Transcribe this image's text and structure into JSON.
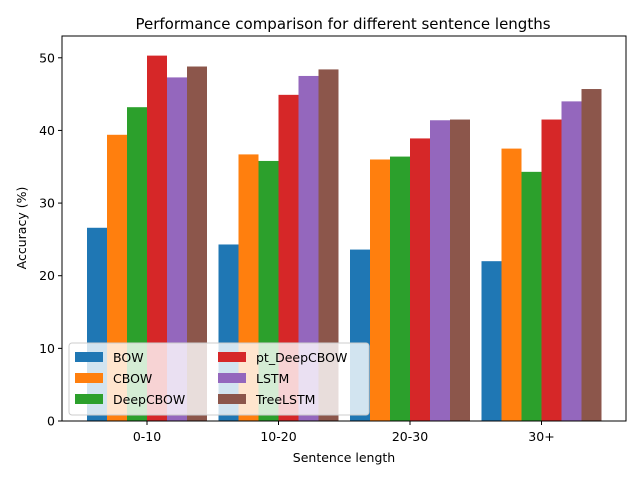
{
  "chart_data": {
    "type": "bar",
    "title": "Performance comparison for different sentence lengths",
    "xlabel": "Sentence length",
    "ylabel": "Accuracy (%)",
    "categories": [
      "0-10",
      "10-20",
      "20-30",
      "30+"
    ],
    "ylim": [
      0,
      53
    ],
    "yticks": [
      0,
      10,
      20,
      30,
      40,
      50
    ],
    "grid": false,
    "legend_position": "lower-left",
    "series": [
      {
        "name": "BOW",
        "color": "#1f77b4",
        "values": [
          26.6,
          24.3,
          23.6,
          22.0
        ]
      },
      {
        "name": "CBOW",
        "color": "#ff7f0e",
        "values": [
          39.4,
          36.7,
          36.0,
          37.5
        ]
      },
      {
        "name": "DeepCBOW",
        "color": "#2ca02c",
        "values": [
          43.2,
          35.8,
          36.4,
          34.3
        ]
      },
      {
        "name": "pt_DeepCBOW",
        "color": "#d62728",
        "values": [
          50.3,
          44.9,
          38.9,
          41.5
        ]
      },
      {
        "name": "LSTM",
        "color": "#9467bd",
        "values": [
          47.3,
          47.5,
          41.4,
          44.0
        ]
      },
      {
        "name": "TreeLSTM",
        "color": "#8c564b",
        "values": [
          48.8,
          48.4,
          41.5,
          45.7
        ]
      }
    ]
  }
}
